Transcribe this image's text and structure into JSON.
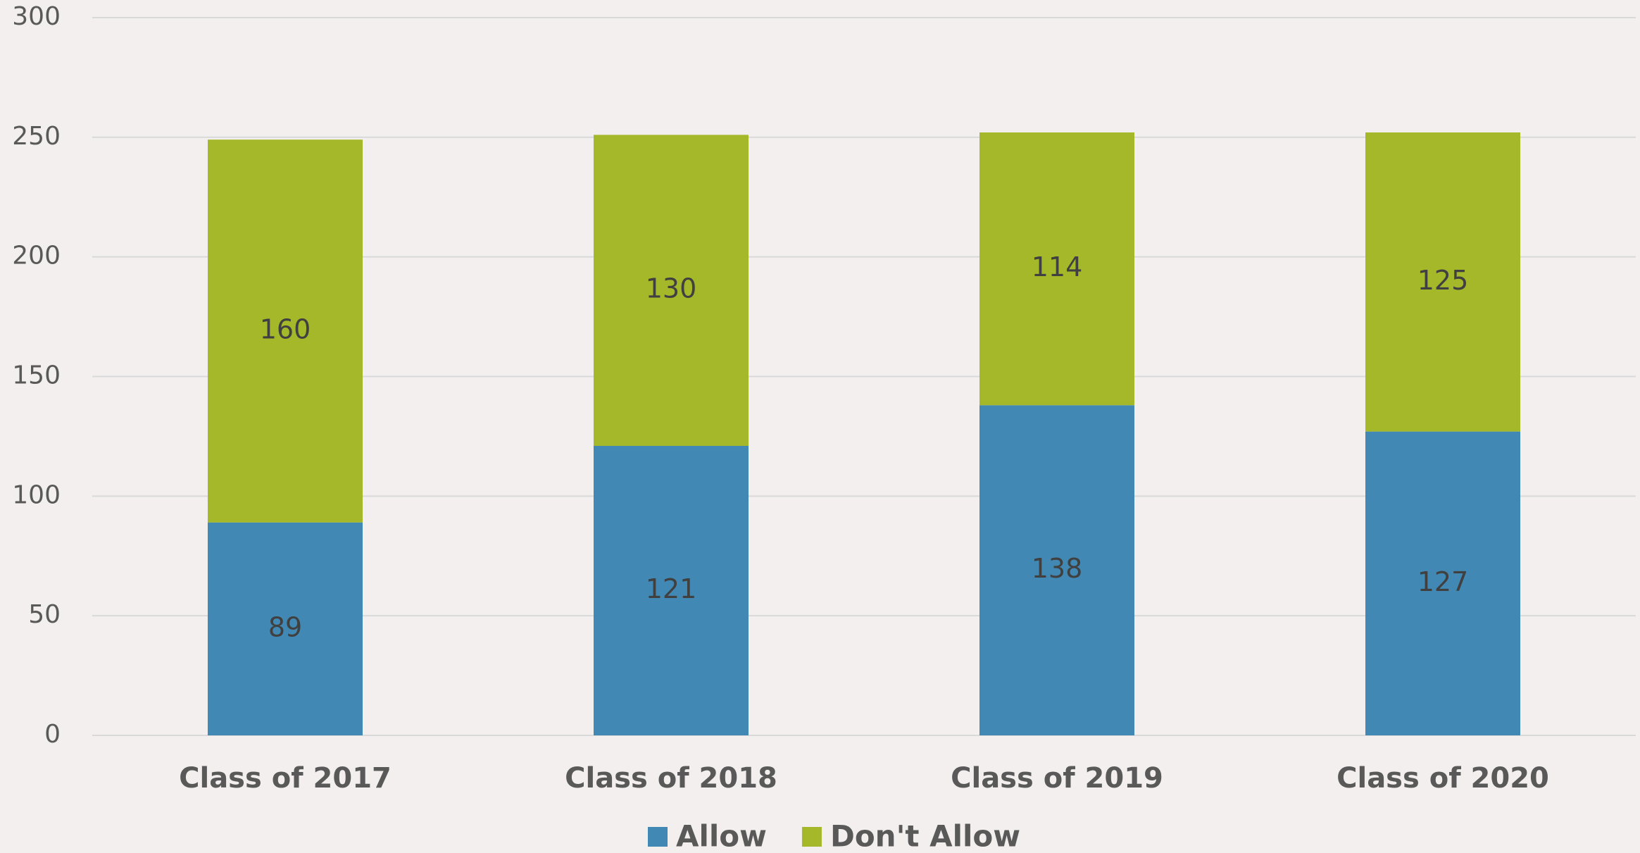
{
  "chart_data": {
    "type": "bar",
    "stacked": true,
    "categories": [
      "Class of 2017",
      "Class of 2018",
      "Class of 2019",
      "Class of 2020"
    ],
    "series": [
      {
        "name": "Allow",
        "color": "#4189b4",
        "values": [
          89,
          121,
          138,
          127
        ]
      },
      {
        "name": "Don't Allow",
        "color": "#a5b82a",
        "values": [
          160,
          130,
          114,
          125
        ]
      }
    ],
    "ylim": [
      0,
      300
    ],
    "yticks": [
      0,
      50,
      100,
      150,
      200,
      250,
      300
    ],
    "grid": true,
    "legend": "bottom",
    "data_labels": true
  }
}
